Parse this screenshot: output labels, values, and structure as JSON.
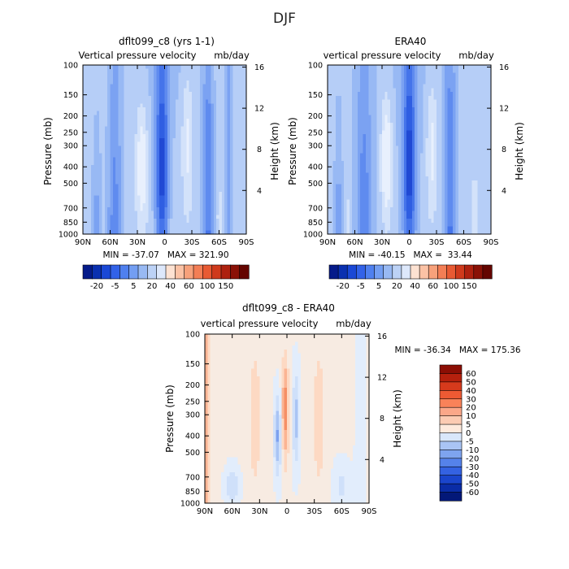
{
  "suptitle": "DJF",
  "chart_data": [
    {
      "type": "heatmap",
      "title": "dflt099_c8 (yrs 1-1)",
      "subtitle": "Vertical pressure velocity",
      "units": "mb/day",
      "ylabel": "Pressure (mb)",
      "y2label": "Height (km)",
      "x_ticks": [
        "90N",
        "60N",
        "30N",
        "0",
        "30S",
        "60S",
        "90S"
      ],
      "y_ticks": [
        "100",
        "150",
        "200",
        "250",
        "300",
        "400",
        "500",
        "700",
        "850",
        "1000"
      ],
      "y2_ticks": [
        "16",
        "12",
        "8",
        "4"
      ],
      "stats": "MIN = -37.07   MAX = 321.90",
      "stats_values": {
        "min": -37.07,
        "max": 321.9
      },
      "colorbar": {
        "orientation": "horizontal",
        "labels": [
          "-20",
          "-5",
          "5",
          "20",
          "40",
          "60",
          "100",
          "150"
        ],
        "colors": [
          "#051b8a",
          "#0a30b0",
          "#1a48d6",
          "#3262e8",
          "#4f80ef",
          "#739ef2",
          "#98b9f3",
          "#bcd2f6",
          "#dde8fb",
          "#fde2d2",
          "#fbc2a5",
          "#f7a17b",
          "#f37e55",
          "#e85a33",
          "#cf3a1c",
          "#ae210f",
          "#8a1106",
          "#640500"
        ]
      },
      "grid": false
    },
    {
      "type": "heatmap",
      "title": "ERA40",
      "subtitle": "vertical pressure velocity",
      "units": "mb/day",
      "ylabel": "Pressure (mb)",
      "y2label": "Height (km)",
      "x_ticks": [
        "90N",
        "60N",
        "30N",
        "0",
        "30S",
        "60S",
        "90S"
      ],
      "y_ticks": [
        "100",
        "150",
        "200",
        "250",
        "300",
        "400",
        "500",
        "700",
        "850",
        "1000"
      ],
      "y2_ticks": [
        "16",
        "12",
        "8",
        "4"
      ],
      "stats": "MIN = -40.15   MAX =  33.44",
      "stats_values": {
        "min": -40.15,
        "max": 33.44
      },
      "colorbar": {
        "orientation": "horizontal",
        "labels": [
          "-20",
          "-5",
          "5",
          "20",
          "40",
          "60",
          "100",
          "150"
        ],
        "colors": [
          "#051b8a",
          "#0a30b0",
          "#1a48d6",
          "#3262e8",
          "#4f80ef",
          "#739ef2",
          "#98b9f3",
          "#bcd2f6",
          "#dde8fb",
          "#fde2d2",
          "#fbc2a5",
          "#f7a17b",
          "#f37e55",
          "#e85a33",
          "#cf3a1c",
          "#ae210f",
          "#8a1106",
          "#640500"
        ]
      },
      "grid": false
    },
    {
      "type": "heatmap",
      "title": "dflt099_c8 - ERA40",
      "subtitle": "vertical pressure velocity",
      "units": "mb/day",
      "ylabel": "Pressure (mb)",
      "y2label": "Height (km)",
      "x_ticks": [
        "90N",
        "60N",
        "30N",
        "0",
        "30S",
        "60S",
        "90S"
      ],
      "y_ticks": [
        "100",
        "150",
        "200",
        "250",
        "300",
        "400",
        "500",
        "700",
        "850",
        "1000"
      ],
      "y2_ticks": [
        "16",
        "12",
        "8",
        "4"
      ],
      "stats": "MIN = -36.34   MAX = 175.36",
      "stats_values": {
        "min": -36.34,
        "max": 175.36
      },
      "colorbar": {
        "orientation": "vertical",
        "labels": [
          "60",
          "50",
          "40",
          "30",
          "20",
          "10",
          "5",
          "0",
          "-5",
          "-10",
          "-20",
          "-30",
          "-40",
          "-50",
          "-60"
        ],
        "colors": [
          "#8c0e04",
          "#b5200d",
          "#d63a1c",
          "#ee5a33",
          "#f98259",
          "#fba789",
          "#fccbb3",
          "#feeadd",
          "#d9e7fb",
          "#a9c4f4",
          "#7ea4ef",
          "#5582ea",
          "#3462e2",
          "#1a45cc",
          "#0a2ca6",
          "#031878"
        ]
      },
      "grid": false
    }
  ]
}
